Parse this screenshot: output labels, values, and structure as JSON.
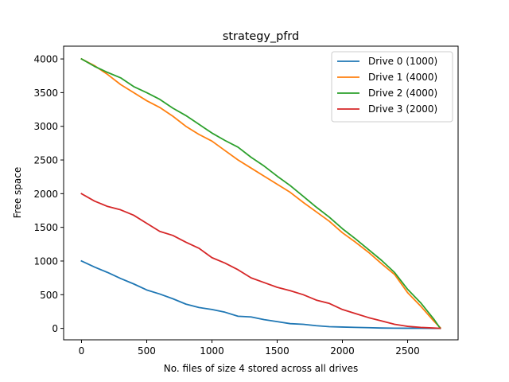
{
  "chart_data": {
    "type": "line",
    "title": "strategy_pfrd",
    "xlabel": "No. files of size 4 stored across all drives",
    "ylabel": "Free space",
    "xlim": [
      -137,
      2887
    ],
    "ylim": [
      -170,
      4190
    ],
    "xticks": [
      0,
      500,
      1000,
      1500,
      2000,
      2500
    ],
    "yticks": [
      0,
      500,
      1000,
      1500,
      2000,
      2500,
      3000,
      3500,
      4000
    ],
    "grid": false,
    "legend_position": "top-right",
    "series": [
      {
        "name": "Drive 0 (1000)",
        "color": "#1f77b4",
        "x": [
          0,
          100,
          200,
          300,
          400,
          500,
          600,
          700,
          800,
          900,
          1000,
          1100,
          1200,
          1300,
          1400,
          1500,
          1600,
          1700,
          1800,
          1900,
          2000,
          2100,
          2200,
          2300,
          2400,
          2500,
          2600,
          2700,
          2750
        ],
        "y": [
          1000,
          910,
          830,
          740,
          660,
          570,
          510,
          440,
          360,
          310,
          280,
          240,
          180,
          170,
          130,
          100,
          70,
          60,
          40,
          25,
          20,
          15,
          10,
          5,
          3,
          2,
          1,
          0,
          0
        ]
      },
      {
        "name": "Drive 1 (4000)",
        "color": "#ff7f0e",
        "x": [
          0,
          100,
          200,
          300,
          400,
          500,
          600,
          700,
          800,
          900,
          1000,
          1100,
          1200,
          1300,
          1400,
          1500,
          1600,
          1700,
          1800,
          1900,
          2000,
          2100,
          2200,
          2300,
          2400,
          2500,
          2600,
          2700,
          2750
        ],
        "y": [
          4000,
          3900,
          3770,
          3620,
          3500,
          3380,
          3280,
          3150,
          3000,
          2880,
          2780,
          2640,
          2500,
          2380,
          2260,
          2140,
          2020,
          1870,
          1730,
          1590,
          1420,
          1280,
          1130,
          960,
          800,
          530,
          330,
          110,
          10
        ]
      },
      {
        "name": "Drive 2 (4000)",
        "color": "#2ca02c",
        "x": [
          0,
          100,
          200,
          300,
          400,
          500,
          600,
          700,
          800,
          900,
          1000,
          1100,
          1200,
          1300,
          1400,
          1500,
          1600,
          1700,
          1800,
          1900,
          2000,
          2100,
          2200,
          2300,
          2400,
          2500,
          2600,
          2700,
          2750
        ],
        "y": [
          4000,
          3890,
          3800,
          3720,
          3590,
          3500,
          3400,
          3270,
          3160,
          3030,
          2900,
          2790,
          2690,
          2540,
          2410,
          2260,
          2120,
          1960,
          1800,
          1650,
          1480,
          1330,
          1170,
          1010,
          830,
          580,
          380,
          140,
          0
        ]
      },
      {
        "name": "Drive 3 (2000)",
        "color": "#d62728",
        "x": [
          0,
          100,
          200,
          300,
          400,
          500,
          600,
          700,
          800,
          900,
          1000,
          1100,
          1200,
          1300,
          1400,
          1500,
          1600,
          1700,
          1800,
          1900,
          2000,
          2100,
          2200,
          2300,
          2400,
          2500,
          2600,
          2700,
          2750
        ],
        "y": [
          2000,
          1890,
          1810,
          1760,
          1680,
          1560,
          1440,
          1380,
          1280,
          1190,
          1050,
          970,
          870,
          750,
          680,
          610,
          560,
          500,
          420,
          370,
          280,
          220,
          160,
          110,
          60,
          30,
          15,
          5,
          0
        ]
      }
    ]
  }
}
